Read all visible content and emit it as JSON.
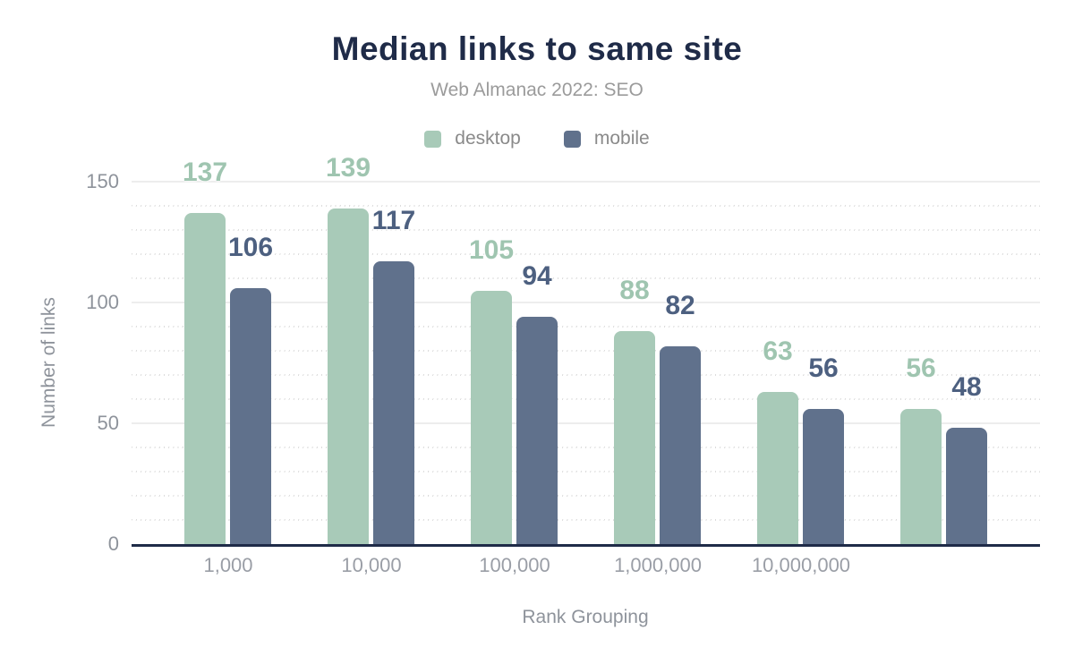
{
  "title": "Median links to same site",
  "subtitle": "Web Almanac 2022: SEO",
  "colors": {
    "title": "#1f2b48",
    "axis_text": "#8e939b",
    "baseline": "#1f2b48",
    "major_grid": "#ededed",
    "minor_grid": "#dcdcdc"
  },
  "chart_data": {
    "type": "bar",
    "categories": [
      "1,000",
      "10,000",
      "100,000",
      "1,000,000",
      "10,000,000",
      ""
    ],
    "series": [
      {
        "name": "desktop",
        "color": "#a8cab8",
        "label_color": "#9fc5b0",
        "values": [
          137,
          139,
          105,
          88,
          63,
          56
        ]
      },
      {
        "name": "mobile",
        "color": "#60718c",
        "label_color": "#4d6080",
        "values": [
          106,
          117,
          94,
          82,
          56,
          48
        ]
      }
    ],
    "title": "Median links to same site",
    "subtitle": "Web Almanac 2022: SEO",
    "xlabel": "Rank Grouping",
    "ylabel": "Number of links",
    "ylim": [
      0,
      150
    ],
    "yticks": [
      0,
      50,
      100,
      150
    ],
    "minor_grid_step": 10,
    "grid": true,
    "legend_position": "top"
  }
}
